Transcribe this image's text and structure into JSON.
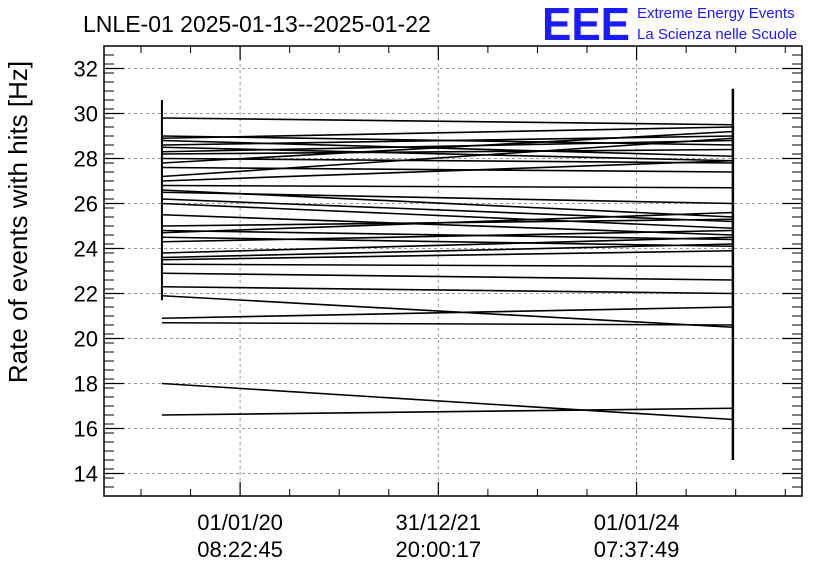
{
  "logo": {
    "mark": "EEE",
    "line1": "Extreme Energy Events",
    "line2": "La Scienza nelle Scuole",
    "color": "#1a1aff"
  },
  "chart_data": {
    "type": "line",
    "title": "LNLE-01 2025-01-13--2025-01-22",
    "xlabel": "",
    "ylabel": "Rate of events with hits [Hz]",
    "xlim": [
      0,
      1
    ],
    "ylim": [
      13,
      33
    ],
    "y_ticks": [
      "14",
      "16",
      "18",
      "20",
      "22",
      "24",
      "26",
      "28",
      "30",
      "32"
    ],
    "x_ticks": [
      {
        "pos": 0.195,
        "line1": "01/01/20",
        "line2": "08:22:45"
      },
      {
        "pos": 0.479,
        "line1": "31/12/21",
        "line2": "20:00:17"
      },
      {
        "pos": 0.763,
        "line1": "01/01/24",
        "line2": "07:37:49"
      }
    ],
    "grid": true,
    "series": [
      {
        "name": "rate",
        "x_start": 0.083,
        "x_end": 0.901,
        "pairs": [
          [
            29.8,
            29.5
          ],
          [
            29.0,
            28.6
          ],
          [
            28.9,
            29.4
          ],
          [
            28.8,
            28.1
          ],
          [
            28.6,
            29.0
          ],
          [
            28.5,
            27.9
          ],
          [
            28.3,
            28.8
          ],
          [
            28.2,
            28.4
          ],
          [
            28.0,
            27.8
          ],
          [
            27.8,
            29.2
          ],
          [
            27.6,
            27.4
          ],
          [
            27.2,
            28.9
          ],
          [
            27.0,
            27.9
          ],
          [
            26.8,
            26.7
          ],
          [
            26.6,
            25.4
          ],
          [
            26.5,
            26.0
          ],
          [
            26.2,
            25.2
          ],
          [
            26.0,
            24.9
          ],
          [
            25.5,
            24.6
          ],
          [
            25.0,
            25.3
          ],
          [
            24.8,
            24.4
          ],
          [
            24.7,
            25.6
          ],
          [
            24.5,
            24.1
          ],
          [
            24.3,
            24.8
          ],
          [
            23.8,
            24.5
          ],
          [
            23.6,
            24.2
          ],
          [
            23.5,
            23.9
          ],
          [
            23.3,
            23.2
          ],
          [
            22.9,
            22.6
          ],
          [
            22.3,
            22.0
          ],
          [
            21.9,
            20.5
          ],
          [
            20.9,
            21.4
          ],
          [
            20.7,
            20.6
          ],
          [
            18.0,
            16.4
          ],
          [
            16.6,
            16.9
          ]
        ],
        "start_bar": [
          21.7,
          30.6
        ],
        "end_bar": [
          14.6,
          31.1
        ]
      }
    ]
  }
}
